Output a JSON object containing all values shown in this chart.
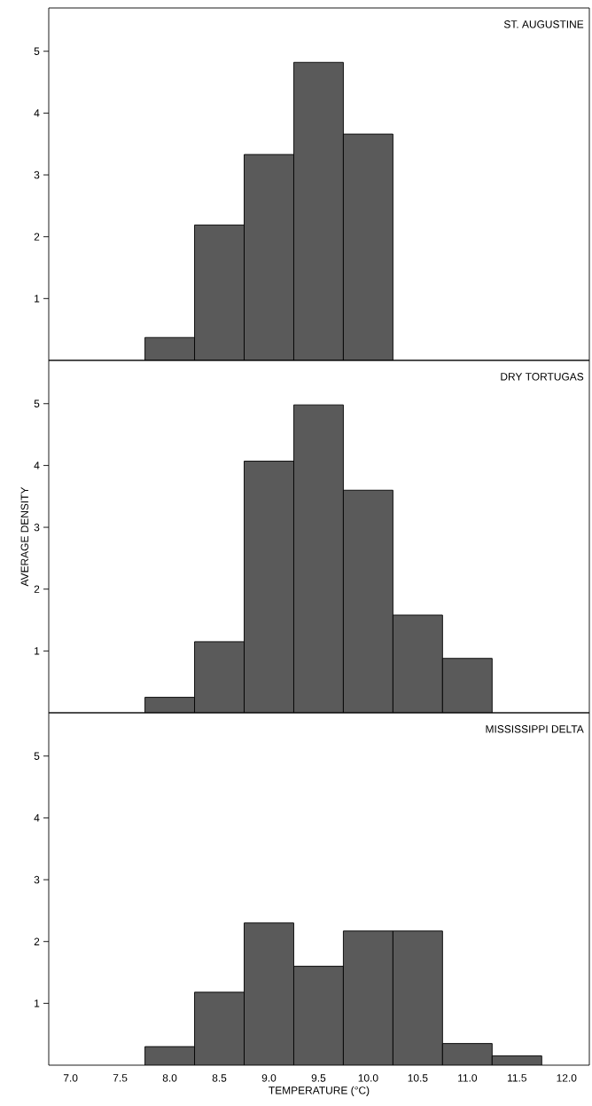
{
  "chart_data": [
    {
      "type": "histogram",
      "title": "ST. AUGUSTINE",
      "bins": [
        7.75,
        8.25,
        8.75,
        9.25,
        9.75,
        10.25
      ],
      "values": [
        0.37,
        2.19,
        3.33,
        4.82,
        3.66
      ],
      "color": "#5a5a5a",
      "xlim": [
        6.78,
        12.23
      ],
      "ylim": [
        0,
        5.7
      ],
      "yticks": [
        1,
        2,
        3,
        4,
        5
      ],
      "tick_labels": "y"
    },
    {
      "type": "histogram",
      "title": "DRY TORTUGAS",
      "ylabel": "AVERAGE DENSITY",
      "bins": [
        7.75,
        8.25,
        8.75,
        9.25,
        9.75,
        10.25,
        10.75,
        11.25
      ],
      "values": [
        0.25,
        1.15,
        4.07,
        4.98,
        3.6,
        1.58,
        0.88
      ],
      "color": "#5a5a5a",
      "xlim": [
        6.78,
        12.23
      ],
      "ylim": [
        0,
        5.7
      ],
      "yticks": [
        1,
        2,
        3,
        4,
        5
      ],
      "tick_labels": "y"
    },
    {
      "type": "histogram",
      "title": "MISSISSIPPI DELTA",
      "xlabel": "TEMPERATURE (°C)",
      "bins": [
        7.75,
        8.25,
        8.75,
        9.25,
        9.75,
        10.25,
        10.75,
        11.25,
        11.75
      ],
      "values": [
        0.3,
        1.18,
        2.3,
        1.6,
        2.17,
        2.17,
        0.35,
        0.15
      ],
      "color": "#5a5a5a",
      "xlim": [
        6.78,
        12.23
      ],
      "ylim": [
        0,
        5.7
      ],
      "yticks": [
        1,
        2,
        3,
        4,
        5
      ],
      "xticks": [
        {
          "value": 7.0,
          "label": "7.0"
        },
        {
          "value": 7.5,
          "label": "7.5"
        },
        {
          "value": 8.0,
          "label": "8.0"
        },
        {
          "value": 8.5,
          "label": "8.5"
        },
        {
          "value": 9.0,
          "label": "9.0"
        },
        {
          "value": 9.5,
          "label": "9.5"
        },
        {
          "value": 10.0,
          "label": "10.0"
        },
        {
          "value": 10.5,
          "label": "10.5"
        },
        {
          "value": 11.0,
          "label": "11.0"
        },
        {
          "value": 11.5,
          "label": "11.5"
        },
        {
          "value": 12.0,
          "label": "12.0"
        }
      ]
    }
  ]
}
